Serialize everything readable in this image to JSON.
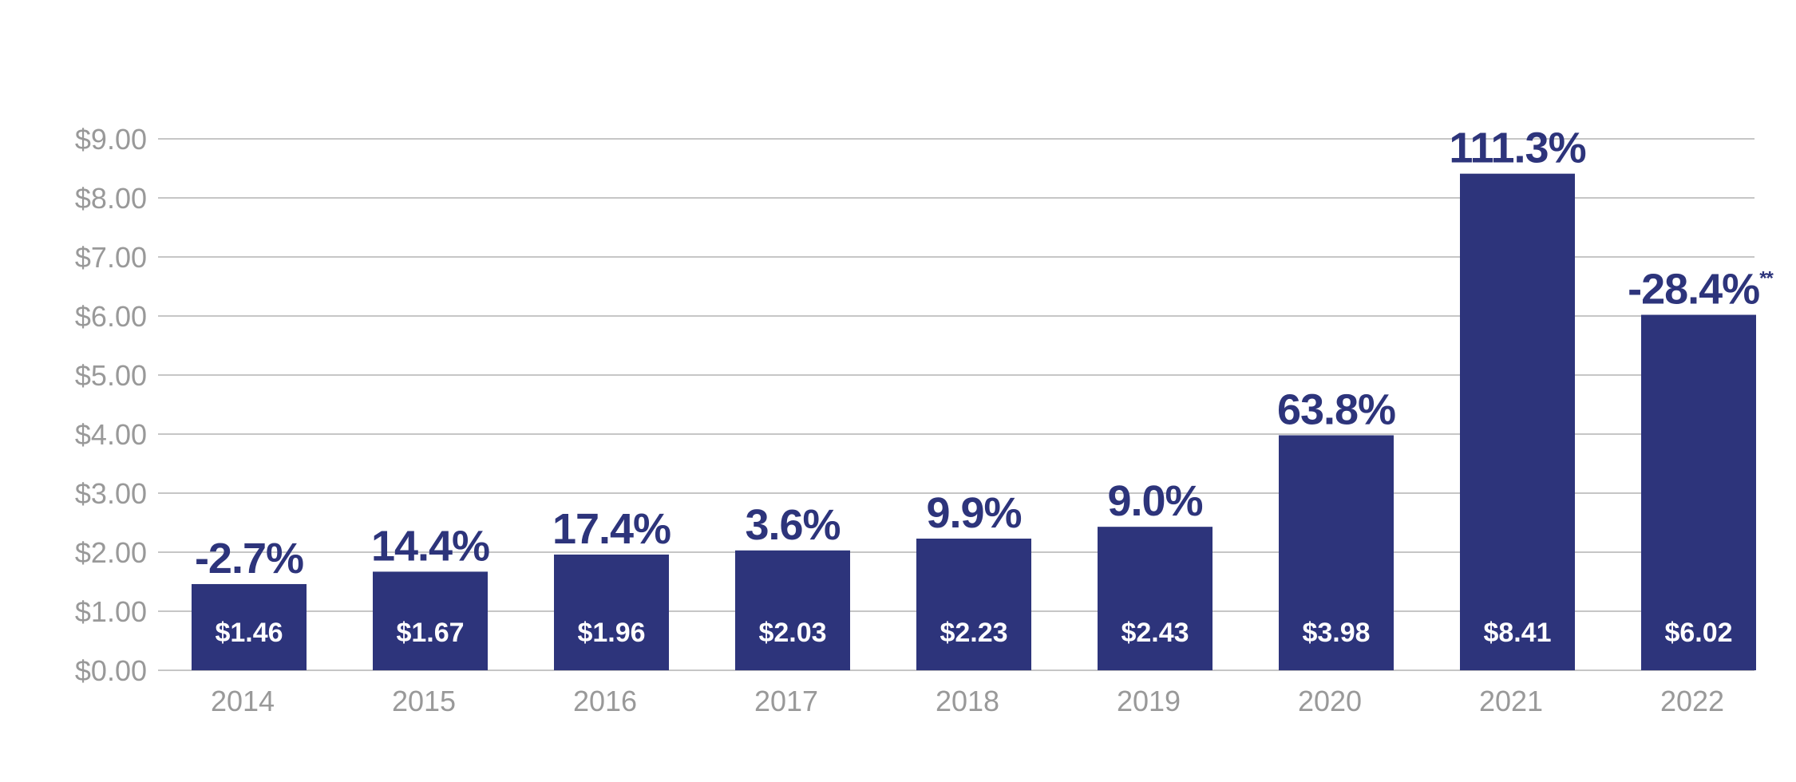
{
  "chart_data": {
    "type": "bar",
    "categories": [
      "2014",
      "2015",
      "2016",
      "2017",
      "2018",
      "2019",
      "2020",
      "2021",
      "2022"
    ],
    "values": [
      1.46,
      1.67,
      1.96,
      2.03,
      2.23,
      2.43,
      3.98,
      8.41,
      6.02
    ],
    "value_labels": [
      "$1.46",
      "$1.67",
      "$1.96",
      "$2.03",
      "$2.23",
      "$2.43",
      "$3.98",
      "$8.41",
      "$6.02"
    ],
    "pct_labels": [
      "-2.7%",
      "14.4%",
      "17.4%",
      "3.6%",
      "9.9%",
      "9.0%",
      "63.8%",
      "111.3%",
      "-28.4%"
    ],
    "pct_notes": [
      "",
      "",
      "",
      "",
      "",
      "",
      "",
      "",
      "**"
    ],
    "y_ticks": [
      "$0.00",
      "$1.00",
      "$2.00",
      "$3.00",
      "$4.00",
      "$5.00",
      "$6.00",
      "$7.00",
      "$8.00",
      "$9.00"
    ],
    "ylim": [
      0,
      9
    ],
    "grid": true,
    "title": "",
    "xlabel": "",
    "ylabel": "",
    "colors": {
      "bar": "#2d347b",
      "pct_label": "#2d347b",
      "value_label": "#ffffff",
      "tick_label": "#999999",
      "grid": "#b3b3b3"
    }
  }
}
